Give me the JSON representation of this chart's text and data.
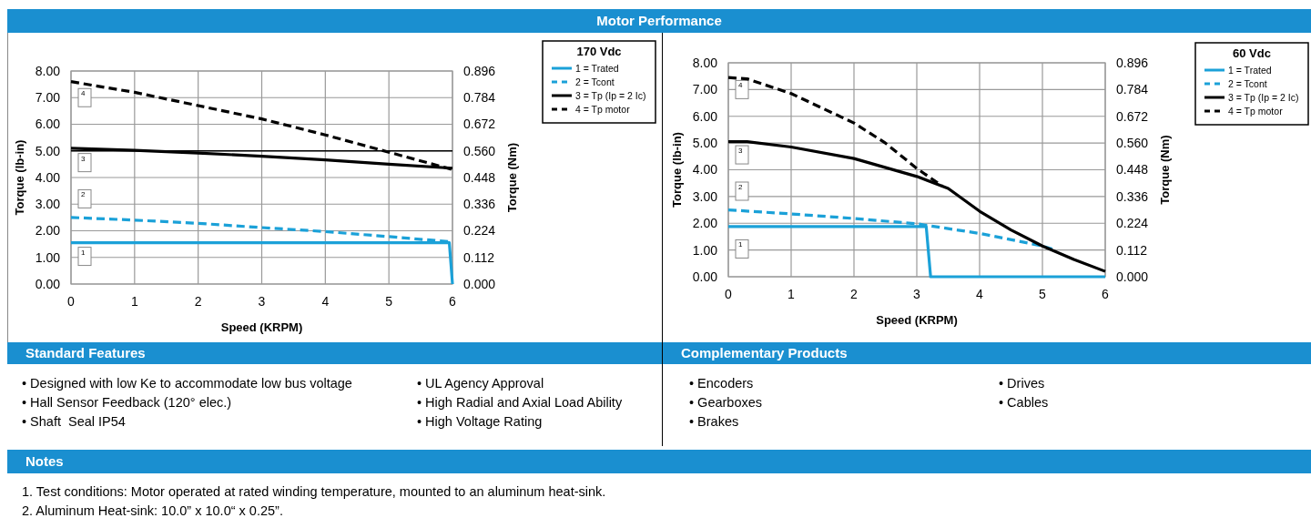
{
  "chart_data": [
    {
      "type": "other",
      "title": "Motor Performance"
    },
    {
      "type": "line",
      "legend_title": "170 Vdc",
      "xlabel": "Speed (KRPM)",
      "ylabel": "Torque (lb-in)",
      "y2label": "Torque (Nm)",
      "xlim": [
        0,
        6
      ],
      "xticks": [
        0,
        1,
        2,
        3,
        4,
        5,
        6
      ],
      "ylim": [
        0,
        8
      ],
      "yticks": [
        {
          "value": 0,
          "label": "0.00"
        },
        {
          "value": 1,
          "label": "1.00"
        },
        {
          "value": 2,
          "label": "2.00"
        },
        {
          "value": 3,
          "label": "3.00"
        },
        {
          "value": 4,
          "label": "4.00"
        },
        {
          "value": 5,
          "label": "5.00"
        },
        {
          "value": 6,
          "label": "6.00"
        },
        {
          "value": 7,
          "label": "7.00"
        },
        {
          "value": 8,
          "label": "8.00"
        }
      ],
      "y2lim": [
        0,
        0.896
      ],
      "y2ticks": [
        {
          "value": 0,
          "label": "0.000"
        },
        {
          "value": 0.112,
          "label": "0.112"
        },
        {
          "value": 0.224,
          "label": "0.224"
        },
        {
          "value": 0.336,
          "label": "0.336"
        },
        {
          "value": 0.448,
          "label": "0.448"
        },
        {
          "value": 0.56,
          "label": "0.560"
        },
        {
          "value": 0.672,
          "label": "0.672"
        },
        {
          "value": 0.784,
          "label": "0.784"
        },
        {
          "value": 0.896,
          "label": "0.896"
        }
      ],
      "grid": true,
      "legend": "top right",
      "ref_lines": [
        {
          "axis": "y",
          "value": 5,
          "color": "#000000"
        }
      ],
      "annotations": [
        "4",
        "3",
        "2",
        "1"
      ],
      "series": [
        {
          "name": "1 = Trated",
          "color": "#1ba1d8",
          "line_style": "solid",
          "x": [
            0,
            5.95,
            6
          ],
          "values": [
            1.55,
            1.55,
            0
          ]
        },
        {
          "name": "2 = Tcont",
          "color": "#1ba1d8",
          "line_style": "dashed",
          "x": [
            0,
            1,
            2,
            3,
            4,
            5,
            6
          ],
          "values": [
            2.5,
            2.4,
            2.28,
            2.12,
            1.97,
            1.78,
            1.58
          ]
        },
        {
          "name": "3 = Tp (Ip = 2 Ic)",
          "color": "#000000",
          "line_style": "solid",
          "x": [
            0,
            1,
            2,
            3,
            4,
            5,
            6
          ],
          "values": [
            5.1,
            5.02,
            4.92,
            4.8,
            4.66,
            4.5,
            4.35
          ]
        },
        {
          "name": "4 = Tp motor",
          "color": "#000000",
          "line_style": "dashed",
          "x": [
            0,
            1,
            2,
            3,
            4,
            5,
            6
          ],
          "values": [
            7.6,
            7.2,
            6.7,
            6.2,
            5.6,
            4.95,
            4.3
          ]
        }
      ]
    },
    {
      "type": "line",
      "legend_title": "60 Vdc",
      "xlabel": "Speed (KRPM)",
      "ylabel": "Torque (lb-in)",
      "y2label": "Torque (Nm)",
      "xlim": [
        0,
        6
      ],
      "xticks": [
        0,
        1,
        2,
        3,
        4,
        5,
        6
      ],
      "ylim": [
        0,
        8
      ],
      "yticks": [
        {
          "value": 0,
          "label": "0.00"
        },
        {
          "value": 1,
          "label": "1.00"
        },
        {
          "value": 2,
          "label": "2.00"
        },
        {
          "value": 3,
          "label": "3.00"
        },
        {
          "value": 4,
          "label": "4.00"
        },
        {
          "value": 5,
          "label": "5.00"
        },
        {
          "value": 6,
          "label": "6.00"
        },
        {
          "value": 7,
          "label": "7.00"
        },
        {
          "value": 8,
          "label": "8.00"
        }
      ],
      "y2lim": [
        0,
        0.896
      ],
      "y2ticks": [
        {
          "value": 0,
          "label": "0.000"
        },
        {
          "value": 0.112,
          "label": "0.112"
        },
        {
          "value": 0.224,
          "label": "0.224"
        },
        {
          "value": 0.336,
          "label": "0.336"
        },
        {
          "value": 0.448,
          "label": "0.448"
        },
        {
          "value": 0.56,
          "label": "0.560"
        },
        {
          "value": 0.672,
          "label": "0.672"
        },
        {
          "value": 0.784,
          "label": "0.784"
        },
        {
          "value": 0.896,
          "label": "0.896"
        }
      ],
      "grid": true,
      "legend": "top right",
      "annotations": [
        "4",
        "3",
        "2",
        "1"
      ],
      "series": [
        {
          "name": "1 = Trated",
          "color": "#1ba1d8",
          "line_style": "solid",
          "x": [
            0,
            3.15,
            3.22,
            6
          ],
          "values": [
            1.88,
            1.88,
            0,
            0
          ]
        },
        {
          "name": "2 = Tcont",
          "color": "#1ba1d8",
          "line_style": "dashed",
          "x": [
            0,
            1,
            2,
            3,
            4,
            5,
            5.2
          ],
          "values": [
            2.5,
            2.35,
            2.18,
            1.98,
            1.62,
            1.15,
            1.0
          ]
        },
        {
          "name": "3 = Tp (Ip = 2 Ic)",
          "color": "#000000",
          "line_style": "solid",
          "x": [
            0,
            0.3,
            1,
            2,
            3,
            3.5,
            4,
            4.5,
            5,
            5.5,
            6
          ],
          "values": [
            5.05,
            5.05,
            4.85,
            4.42,
            3.75,
            3.3,
            2.45,
            1.75,
            1.15,
            0.65,
            0.2
          ]
        },
        {
          "name": "4 = Tp motor",
          "color": "#000000",
          "line_style": "dashed",
          "x": [
            0,
            0.3,
            1,
            2,
            2.5,
            3,
            3.4
          ],
          "values": [
            7.45,
            7.4,
            6.85,
            5.75,
            5.0,
            4.05,
            3.4
          ]
        }
      ]
    },
    {
      "type": "other",
      "title": "Standard Features",
      "annotations": [
        "• Designed with low Ke to accommodate low bus voltage",
        "• Hall Sensor Feedback (120° elec.)",
        "• Shaft  Seal IP54",
        "• UL Agency Approval",
        "• High Radial and Axial Load Ability",
        "• High Voltage Rating"
      ]
    },
    {
      "type": "other",
      "title": "Complementary Products",
      "annotations": [
        "• Encoders",
        "• Gearboxes",
        "• Brakes",
        "• Drives",
        "• Cables"
      ]
    },
    {
      "type": "other",
      "title": "Notes",
      "annotations": [
        "1. Test conditions: Motor operated at rated winding temperature, mounted to an aluminum heat-sink.",
        "2. Aluminum Heat-sink: 10.0” x 10.0“ x 0.25”."
      ]
    }
  ]
}
